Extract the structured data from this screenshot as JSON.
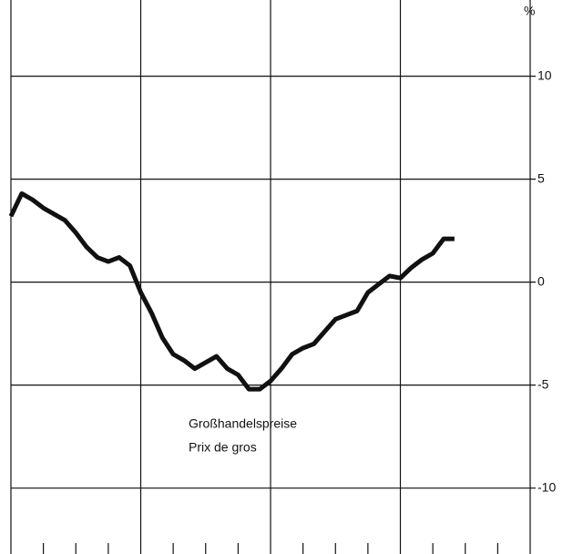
{
  "chart_data": {
    "type": "line",
    "y_unit": "%",
    "annotation": [
      "Großhandelspreise",
      "Prix de gros"
    ],
    "x": [
      0,
      1,
      2,
      3,
      4,
      5,
      6,
      7,
      8,
      9,
      10,
      11,
      12,
      13,
      14,
      15,
      16,
      17,
      18,
      19,
      20,
      21,
      22,
      23,
      24,
      25,
      26,
      27,
      28,
      29,
      30,
      31,
      32,
      33,
      34,
      35,
      36,
      37,
      38,
      39,
      40,
      41
    ],
    "series": [
      {
        "color": "#111111",
        "values": [
          3.2,
          4.3,
          4.0,
          3.6,
          3.3,
          3.0,
          2.4,
          1.7,
          1.2,
          1.0,
          1.2,
          0.8,
          -0.5,
          -1.5,
          -2.7,
          -3.5,
          -3.8,
          -4.2,
          -3.9,
          -3.6,
          -4.2,
          -4.5,
          -5.2,
          -5.2,
          -4.8,
          -4.2,
          -3.5,
          -3.2,
          -3.0,
          -2.4,
          -1.8,
          -1.6,
          -1.4,
          -0.5,
          -0.1,
          0.3,
          0.2,
          0.7,
          1.1,
          1.4,
          2.1,
          2.1
        ]
      }
    ],
    "xlim": [
      0,
      48
    ],
    "xticks": [
      0,
      3,
      6,
      9,
      12,
      15,
      18,
      21,
      24,
      27,
      30,
      33,
      36,
      39,
      42,
      45,
      48
    ],
    "ylim": [
      -13.2,
      13.7
    ],
    "yticks": [
      -10,
      -5,
      0,
      5,
      10
    ],
    "grid": true
  }
}
